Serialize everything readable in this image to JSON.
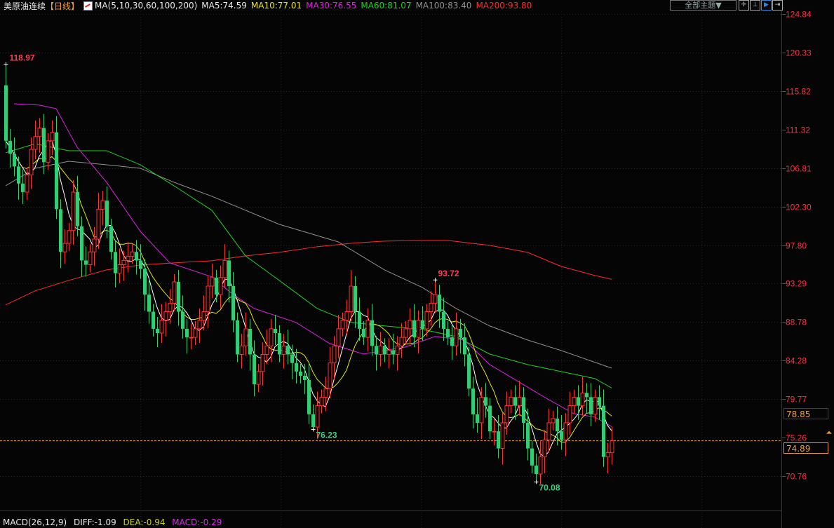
{
  "header": {
    "title": "美原油连续",
    "period": "【日线】",
    "ma_params": "MA(5,10,30,60,100,200)",
    "ma5": "MA5:74.59",
    "ma10": "MA10:77.01",
    "ma30": "MA30:76.55",
    "ma60": "MA60:81.07",
    "ma100": "MA100:83.40",
    "ma200": "MA200:93.80",
    "theme_button": "全部主题▼",
    "tools": [
      "crosshair-icon",
      "range-icon",
      "play-icon",
      "move-right-icon"
    ]
  },
  "macd": {
    "params": "MACD(26,12,9)",
    "diff": "DIFF:-1.09",
    "dea": "DEA:-0.94",
    "macd": "MACD:-0.29"
  },
  "colors": {
    "up": "#ff3333",
    "down": "#33cc77",
    "ma5": "#ffffff",
    "ma10": "#e8e800",
    "ma30": "#e020e0",
    "ma60": "#20d020",
    "ma100": "#909090",
    "ma200": "#ff2a2a",
    "axis_text": "#ff3040",
    "last_price": "#f0a030"
  },
  "chart_data": {
    "type": "candlestick",
    "y_ticks": [
      "124.84",
      "120.33",
      "115.82",
      "111.32",
      "106.81",
      "102.30",
      "97.80",
      "93.29",
      "88.78",
      "84.28",
      "79.77",
      "75.26",
      "70.76"
    ],
    "ylim": [
      70.76,
      124.84
    ],
    "grid": true,
    "first_open": 116.5,
    "close": [
      110,
      108.5,
      107,
      105,
      104,
      106,
      109,
      110.5,
      111.5,
      107.5,
      110,
      111,
      102,
      97,
      98,
      99.5,
      104,
      100,
      96,
      95.5,
      97,
      98.5,
      102,
      103,
      100,
      97,
      94.5,
      95.5,
      96,
      96.5,
      97,
      96,
      95,
      92,
      90,
      88,
      87.5,
      89,
      90,
      91,
      93.5,
      90,
      88,
      87,
      87,
      88,
      89,
      90,
      93,
      94,
      92,
      94,
      96,
      93,
      89,
      85,
      86,
      88,
      85,
      81.5,
      83,
      85,
      86,
      88,
      87.5,
      85,
      86,
      85,
      84,
      83,
      82.5,
      82,
      78,
      76.5,
      79,
      80,
      81,
      84,
      86,
      88,
      89,
      90,
      93,
      90,
      88,
      87,
      89,
      86,
      85,
      86,
      85,
      85.5,
      85,
      86,
      87,
      88,
      89,
      87,
      89,
      88,
      90,
      91,
      92,
      90,
      88,
      87,
      86,
      88,
      87,
      85,
      81,
      78,
      77,
      80,
      79,
      76,
      76,
      74,
      77,
      79,
      80,
      79,
      80,
      77,
      74,
      72,
      71,
      73,
      75,
      77,
      77.5,
      76,
      75,
      77,
      79,
      80,
      79,
      80.5,
      80,
      78,
      80,
      79,
      73,
      73.5,
      74.89
    ],
    "annotations": [
      {
        "index": 0,
        "value": 118.97,
        "label": "118.97",
        "kind": "high"
      },
      {
        "index": 102,
        "value": 93.72,
        "label": "93.72",
        "kind": "high"
      },
      {
        "index": 73,
        "value": 76.23,
        "label": "76.23",
        "kind": "low"
      },
      {
        "index": 126,
        "value": 70.08,
        "label": "70.08",
        "kind": "low"
      }
    ],
    "moving_averages": {
      "ma30": [
        [
          2,
          114.34
        ],
        [
          8,
          114.18
        ],
        [
          12,
          113.77
        ],
        [
          17,
          109.25
        ],
        [
          24,
          105.15
        ],
        [
          32,
          99.41
        ],
        [
          39,
          95.72
        ],
        [
          49,
          94.08
        ],
        [
          54,
          92.03
        ],
        [
          59,
          90.39
        ],
        [
          69,
          88.75
        ],
        [
          77,
          86.28
        ],
        [
          85,
          85.05
        ],
        [
          95,
          85.87
        ],
        [
          102,
          87.1
        ],
        [
          109,
          86.69
        ],
        [
          115,
          83.82
        ],
        [
          122,
          81.77
        ],
        [
          129,
          79.72
        ],
        [
          135,
          78.08
        ],
        [
          140,
          77.67
        ],
        [
          144,
          76.55
        ]
      ],
      "ma60": [
        [
          0,
          108.6
        ],
        [
          7,
          109.66
        ],
        [
          15,
          108.84
        ],
        [
          24,
          108.84
        ],
        [
          32,
          107.2
        ],
        [
          40,
          104.74
        ],
        [
          49,
          101.87
        ],
        [
          57,
          96.54
        ],
        [
          65,
          93.67
        ],
        [
          74,
          90.39
        ],
        [
          82,
          88.75
        ],
        [
          90,
          88.34
        ],
        [
          99,
          87.93
        ],
        [
          107,
          87.1
        ],
        [
          115,
          85.05
        ],
        [
          124,
          83.82
        ],
        [
          132,
          83.0
        ],
        [
          140,
          82.18
        ],
        [
          144,
          81.07
        ]
      ],
      "ma100": [
        [
          0,
          104.74
        ],
        [
          7,
          106.79
        ],
        [
          15,
          107.61
        ],
        [
          24,
          107.2
        ],
        [
          32,
          106.79
        ],
        [
          40,
          105.15
        ],
        [
          49,
          103.51
        ],
        [
          65,
          100.23
        ],
        [
          79,
          98.18
        ],
        [
          90,
          94.9
        ],
        [
          99,
          92.84
        ],
        [
          107,
          90.39
        ],
        [
          115,
          88.34
        ],
        [
          124,
          86.69
        ],
        [
          132,
          85.46
        ],
        [
          144,
          83.4
        ]
      ],
      "ma200": [
        [
          0,
          90.8
        ],
        [
          7,
          92.44
        ],
        [
          15,
          93.67
        ],
        [
          24,
          94.9
        ],
        [
          32,
          95.47
        ],
        [
          40,
          95.72
        ],
        [
          49,
          95.96
        ],
        [
          57,
          96.54
        ],
        [
          65,
          96.95
        ],
        [
          74,
          97.61
        ],
        [
          82,
          98.01
        ],
        [
          90,
          98.26
        ],
        [
          99,
          98.34
        ],
        [
          105,
          98.34
        ],
        [
          115,
          97.77
        ],
        [
          124,
          96.95
        ],
        [
          132,
          95.31
        ],
        [
          140,
          94.24
        ],
        [
          144,
          93.8
        ]
      ]
    },
    "last_price": "74.89",
    "marker_price": "78.85"
  }
}
